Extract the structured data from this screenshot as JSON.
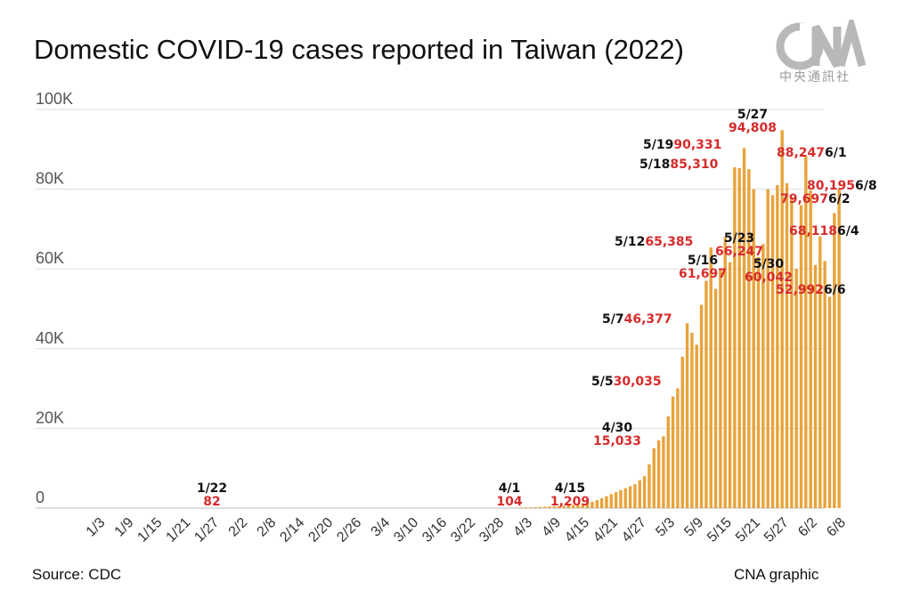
{
  "title": "Domestic COVID-19 cases reported in Taiwan (2022)",
  "logo": {
    "text": "中央通訊社",
    "icon": "cna-logo"
  },
  "source": "Source: CDC",
  "credit": "CNA graphic",
  "colors": {
    "bar": "#e8a33a",
    "annotation_value": "#d62b2b",
    "annotation_date": "#111111",
    "grid": "#dddddd"
  },
  "chart_data": {
    "type": "bar",
    "title": "Domestic COVID-19 cases reported in Taiwan (2022)",
    "xlabel": "",
    "ylabel": "",
    "ylim": [
      0,
      100000
    ],
    "yticks": [
      {
        "value": 0,
        "label": "0"
      },
      {
        "value": 20000,
        "label": "20K"
      },
      {
        "value": 40000,
        "label": "40K"
      },
      {
        "value": 60000,
        "label": "60K"
      },
      {
        "value": 80000,
        "label": "80K"
      },
      {
        "value": 100000,
        "label": "100K"
      }
    ],
    "grid": true,
    "start_date": "1/1",
    "xtick_labels": [
      "1/3",
      "1/9",
      "1/15",
      "1/21",
      "1/27",
      "2/2",
      "2/8",
      "2/14",
      "2/20",
      "2/26",
      "3/4",
      "3/10",
      "3/16",
      "3/22",
      "3/28",
      "4/3",
      "4/9",
      "4/15",
      "4/21",
      "4/27",
      "5/3",
      "5/9",
      "5/15",
      "5/21",
      "5/27",
      "6/2",
      "6/8"
    ],
    "series": [
      {
        "name": "Domestic cases",
        "dates": [
          "3/30",
          "3/31",
          "4/1",
          "4/2",
          "4/3",
          "4/4",
          "4/5",
          "4/6",
          "4/7",
          "4/8",
          "4/9",
          "4/10",
          "4/11",
          "4/12",
          "4/13",
          "4/14",
          "4/15",
          "4/16",
          "4/17",
          "4/18",
          "4/19",
          "4/20",
          "4/21",
          "4/22",
          "4/23",
          "4/24",
          "4/25",
          "4/26",
          "4/27",
          "4/28",
          "4/29",
          "4/30",
          "5/1",
          "5/2",
          "5/3",
          "5/4",
          "5/5",
          "5/6",
          "5/7",
          "5/8",
          "5/9",
          "5/10",
          "5/11",
          "5/12",
          "5/13",
          "5/14",
          "5/15",
          "5/16",
          "5/17",
          "5/18",
          "5/19",
          "5/20",
          "5/21",
          "5/22",
          "5/23",
          "5/24",
          "5/25",
          "5/26",
          "5/27",
          "5/28",
          "5/29",
          "5/30",
          "5/31",
          "6/1",
          "6/2",
          "6/3",
          "6/4",
          "6/5",
          "6/6",
          "6/7",
          "6/8"
        ],
        "values": [
          20,
          30,
          104,
          150,
          180,
          200,
          250,
          300,
          350,
          400,
          450,
          500,
          600,
          700,
          800,
          900,
          1209,
          1400,
          1600,
          2000,
          2500,
          3000,
          3500,
          4000,
          4500,
          5000,
          5500,
          6000,
          7000,
          8000,
          11000,
          15033,
          17000,
          18000,
          23000,
          28000,
          30035,
          38000,
          46377,
          44000,
          41000,
          51000,
          57000,
          65385,
          55000,
          60000,
          68000,
          61697,
          85500,
          85310,
          90331,
          85000,
          80000,
          63000,
          66247,
          80000,
          78500,
          81000,
          94808,
          81500,
          78000,
          60042,
          76000,
          88247,
          79697,
          61000,
          68118,
          62000,
          52992,
          74000,
          80195
        ]
      }
    ],
    "annotations": [
      {
        "date": "1/22",
        "value_label": "82",
        "value": 82
      },
      {
        "date": "4/1",
        "value_label": "104",
        "value": 104
      },
      {
        "date": "4/15",
        "value_label": "1,209",
        "value": 1209
      },
      {
        "date": "4/30",
        "value_label": "15,033",
        "value": 15033
      },
      {
        "date": "5/5",
        "value_label": "30,035",
        "value": 30035
      },
      {
        "date": "5/7",
        "value_label": "46,377",
        "value": 46377
      },
      {
        "date": "5/12",
        "value_label": "65,385",
        "value": 65385
      },
      {
        "date": "5/16",
        "value_label": "61,697",
        "value": 61697
      },
      {
        "date": "5/18",
        "value_label": "85,310",
        "value": 85310
      },
      {
        "date": "5/19",
        "value_label": "90,331",
        "value": 90331
      },
      {
        "date": "5/23",
        "value_label": "66,247",
        "value": 66247
      },
      {
        "date": "5/27",
        "value_label": "94,808",
        "value": 94808
      },
      {
        "date": "5/30",
        "value_label": "60,042",
        "value": 60042
      },
      {
        "date": "6/1",
        "value_label": "88,247",
        "value": 88247
      },
      {
        "date": "6/2",
        "value_label": "79,697",
        "value": 79697
      },
      {
        "date": "6/4",
        "value_label": "68,118",
        "value": 68118
      },
      {
        "date": "6/6",
        "value_label": "52,992",
        "value": 52992
      },
      {
        "date": "6/8",
        "value_label": "80,195",
        "value": 80195
      }
    ]
  }
}
